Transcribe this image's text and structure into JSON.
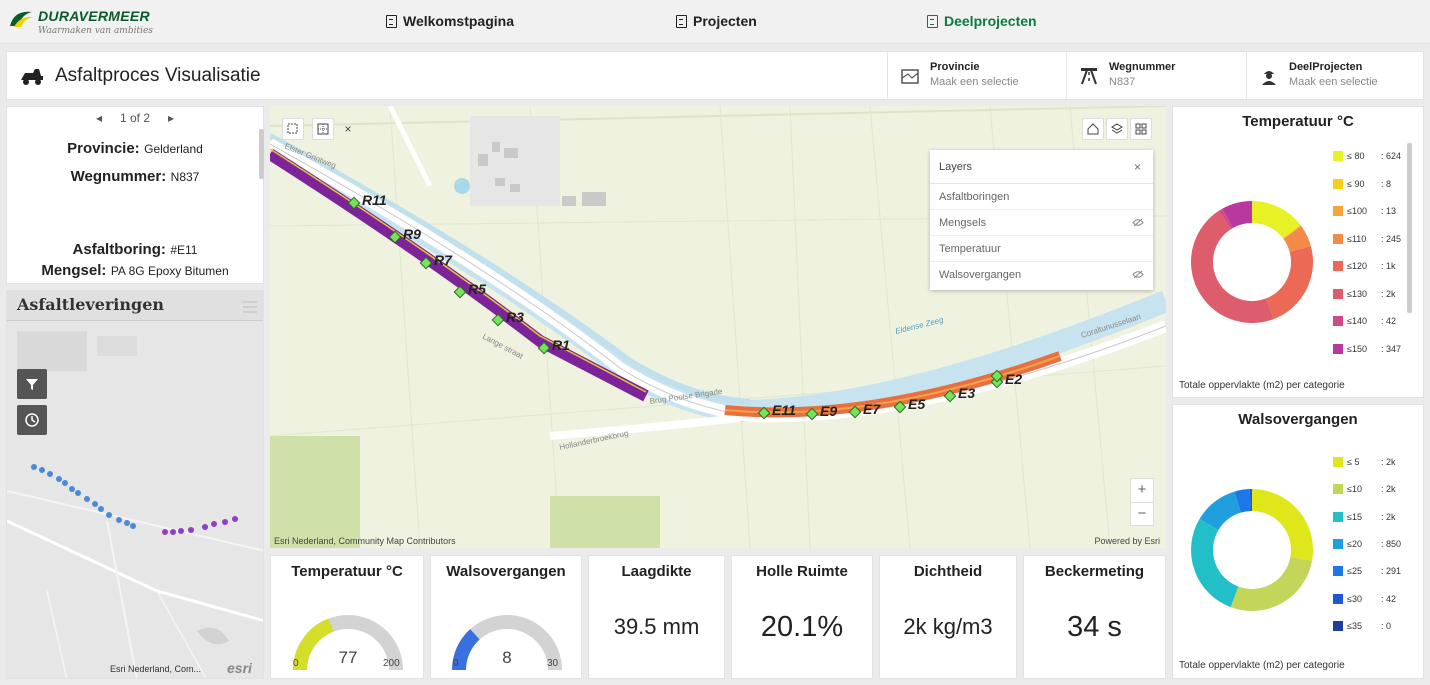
{
  "brand": {
    "name": "DURAVERMEER",
    "tagline": "Waarmaken van ambities"
  },
  "nav": [
    {
      "label": "Welkomstpagina",
      "active": false
    },
    {
      "label": "Projecten",
      "active": false
    },
    {
      "label": "Deelprojecten",
      "active": true
    }
  ],
  "header": {
    "title": "Asfaltproces Visualisatie",
    "filters": [
      {
        "label": "Provincie",
        "value": "Maak een selectie",
        "icon": "map-icon"
      },
      {
        "label": "Wegnummer",
        "value": "N837",
        "icon": "road-icon"
      },
      {
        "label": "DeelProjecten",
        "value": "Maak een selectie",
        "icon": "worker-icon"
      }
    ]
  },
  "details": {
    "pager": "1 of 2",
    "provincie_label": "Provincie:",
    "provincie_value": "Gelderland",
    "wegnummer_label": "Wegnummer:",
    "wegnummer_value": "N837",
    "boring_label": "Asfaltboring:",
    "boring_value": "#E11",
    "mengsel_label": "Mengsel:",
    "mengsel_value": "PA 8G Epoxy Bitumen"
  },
  "asfaltleveringen": {
    "title": "Asfaltleveringen",
    "attribution": "Esri Nederland, Com...",
    "esri": "esri"
  },
  "map": {
    "layers_title": "Layers",
    "layers": [
      {
        "name": "Asfaltboringen",
        "hidden": false
      },
      {
        "name": "Mengsels",
        "hidden": true
      },
      {
        "name": "Temperatuur",
        "hidden": false
      },
      {
        "name": "Walsovergangen",
        "hidden": true
      }
    ],
    "attribution": "Esri Nederland, Community Map Contributors",
    "powered": "Powered by Esri",
    "roads": [
      "Elster Grintweg",
      "Lange straat",
      "Brug Poolse Brigade",
      "Hollanderbroekbrug",
      "Eldense Zeeg",
      "Coraltunusselaan"
    ],
    "markers_r": [
      "R11",
      "R9",
      "R7",
      "R5",
      "R3",
      "R1"
    ],
    "markers_e": [
      "E11",
      "E9",
      "E7",
      "E5",
      "E3",
      "E2"
    ]
  },
  "cards": [
    {
      "title": "Temperatuur °C",
      "type": "gauge",
      "value": "77",
      "min": "0",
      "max": "200",
      "fraction": 0.385,
      "color": "#d4de2b"
    },
    {
      "title": "Walsovergangen",
      "type": "gauge",
      "value": "8",
      "min": "0",
      "max": "30",
      "fraction": 0.267,
      "color": "#3a6fe0"
    },
    {
      "title": "Laagdikte",
      "type": "value",
      "value": "39.5 mm"
    },
    {
      "title": "Holle Ruimte",
      "type": "value",
      "value": "20.1%"
    },
    {
      "title": "Dichtheid",
      "type": "value",
      "value": "2k kg/m3"
    },
    {
      "title": "Beckermeting",
      "type": "value",
      "value": "34 s"
    }
  ],
  "chart_data": [
    {
      "type": "pie",
      "title": "Temperatuur °C",
      "footer": "Totale oppervlakte (m2) per categorie",
      "categories": [
        "≤ 80",
        "≤ 90",
        "≤100",
        "≤110",
        "≤120",
        "≤130",
        "≤140",
        "≤150"
      ],
      "labels": [
        "624",
        "8",
        "13",
        "245",
        "1k",
        "2k",
        "42",
        "347"
      ],
      "values": [
        624,
        8,
        13,
        245,
        1000,
        2000,
        42,
        347
      ],
      "colors": [
        "#e8f026",
        "#f5cf19",
        "#f6a53a",
        "#f38a4a",
        "#ec6a55",
        "#de5d6c",
        "#cf4a8a",
        "#b838a0"
      ]
    },
    {
      "type": "pie",
      "title": "Walsovergangen",
      "footer": "Totale oppervlakte (m2) per categorie",
      "categories": [
        "≤ 5",
        "≤10",
        "≤15",
        "≤20",
        "≤25",
        "≤30",
        "≤35"
      ],
      "labels": [
        "2k",
        "2k",
        "2k",
        "850",
        "291",
        "42",
        "0"
      ],
      "values": [
        2000,
        2000,
        2000,
        850,
        291,
        42,
        0
      ],
      "colors": [
        "#dfe619",
        "#c4d65a",
        "#22bfc9",
        "#1f9fde",
        "#1c78e8",
        "#1f56d6",
        "#1c3f99"
      ]
    }
  ]
}
